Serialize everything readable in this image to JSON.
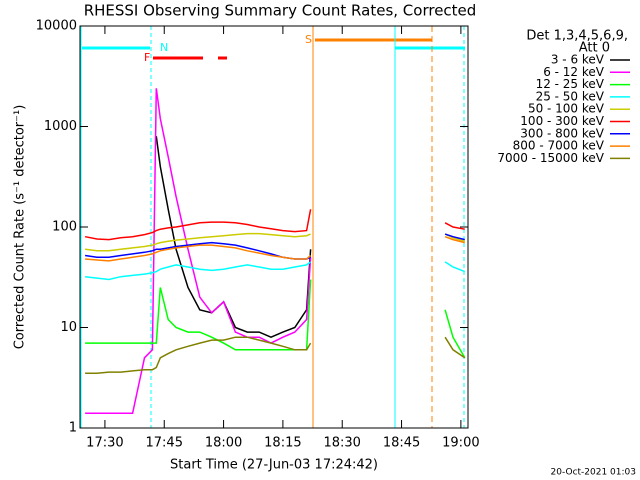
{
  "chart_data": {
    "type": "line",
    "title": "RHESSI Observing Summary Count Rates, Corrected",
    "x_label": "Start Time (27-Jun-03 17:24:42)",
    "y_label": "Corrected Count Rate (s⁻¹ detector⁻¹)",
    "legend_title": [
      "Det 1,3,4,5,6,9,",
      "Att 0"
    ],
    "footer": "20-Oct-2021 01:03",
    "annotations": [
      "N",
      "F",
      "S"
    ],
    "yscale": "log",
    "xlim": [
      1043.7,
      1141.8
    ],
    "ylim": [
      1,
      10000
    ],
    "xticks": [
      {
        "value": 1050,
        "label": "17:30"
      },
      {
        "value": 1065,
        "label": "17:45"
      },
      {
        "value": 1080,
        "label": "18:00"
      },
      {
        "value": 1095,
        "label": "18:15"
      },
      {
        "value": 1110,
        "label": "18:30"
      },
      {
        "value": 1125,
        "label": "18:45"
      },
      {
        "value": 1140,
        "label": "19:00"
      }
    ],
    "yticks": [
      1,
      10,
      100,
      1000,
      10000
    ],
    "x": [
      1045,
      1048,
      1051,
      1054,
      1057,
      1060,
      1062,
      1063,
      1064,
      1066,
      1068,
      1071,
      1074,
      1077,
      1080,
      1083,
      1086,
      1089,
      1092,
      1095,
      1098,
      1101,
      1102,
      1120,
      1136,
      1138,
      1141
    ],
    "series": [
      {
        "name": "3 - 6 keV",
        "color": "#000000",
        "values": [
          null,
          null,
          null,
          null,
          null,
          null,
          null,
          800,
          400,
          150,
          60,
          25,
          15,
          14,
          18,
          10,
          9,
          9,
          8,
          9,
          10,
          15,
          60,
          null,
          null,
          null,
          null
        ]
      },
      {
        "name": "6 - 12 keV",
        "color": "#ff00ff",
        "values": [
          1.4,
          1.4,
          1.4,
          1.4,
          1.4,
          5,
          6,
          2400,
          1200,
          500,
          200,
          60,
          20,
          14,
          18,
          9,
          8,
          8,
          7,
          8,
          9,
          12,
          50,
          null,
          null,
          null,
          null
        ]
      },
      {
        "name": "12 - 25 keV",
        "color": "#00ff00",
        "values": [
          7,
          7,
          7,
          7,
          7,
          7,
          7,
          7,
          25,
          12,
          10,
          9,
          9,
          8,
          7,
          6,
          6,
          6,
          6,
          6,
          6,
          6,
          30,
          null,
          15,
          8,
          5
        ]
      },
      {
        "name": "25 - 50 keV",
        "color": "#00ffff",
        "values": [
          32,
          31,
          30,
          32,
          33,
          34,
          35,
          36,
          38,
          40,
          42,
          40,
          38,
          37,
          38,
          40,
          42,
          40,
          38,
          38,
          40,
          42,
          45,
          null,
          45,
          40,
          36
        ]
      },
      {
        "name": "50 - 100 keV",
        "color": "#cccc00",
        "values": [
          60,
          58,
          58,
          60,
          62,
          64,
          66,
          68,
          70,
          72,
          74,
          76,
          78,
          80,
          82,
          84,
          86,
          86,
          84,
          82,
          80,
          82,
          85,
          null,
          85,
          78,
          72
        ]
      },
      {
        "name": "100 - 300 keV",
        "color": "#ff0000",
        "values": [
          80,
          76,
          75,
          78,
          80,
          84,
          88,
          92,
          95,
          98,
          100,
          105,
          110,
          112,
          112,
          110,
          106,
          100,
          96,
          92,
          90,
          92,
          150,
          null,
          110,
          100,
          95
        ]
      },
      {
        "name": "300 - 800 keV",
        "color": "#0000ff",
        "values": [
          52,
          50,
          50,
          52,
          54,
          56,
          58,
          60,
          60,
          62,
          64,
          66,
          68,
          70,
          68,
          66,
          62,
          58,
          54,
          50,
          48,
          48,
          50,
          null,
          85,
          80,
          75
        ]
      },
      {
        "name": "800 - 7000 keV",
        "color": "#ff8000",
        "values": [
          48,
          47,
          46,
          48,
          50,
          52,
          54,
          56,
          58,
          60,
          62,
          64,
          66,
          66,
          64,
          62,
          58,
          55,
          52,
          50,
          48,
          48,
          52,
          null,
          80,
          75,
          70
        ]
      },
      {
        "name": "7000 - 15000 keV",
        "color": "#808000",
        "values": [
          3.5,
          3.5,
          3.6,
          3.6,
          3.7,
          3.8,
          3.8,
          4,
          5,
          5.5,
          6,
          6.5,
          7,
          7.5,
          7.5,
          8,
          8,
          7.5,
          7,
          6.5,
          6,
          6,
          7,
          null,
          8,
          6,
          5
        ]
      }
    ]
  }
}
